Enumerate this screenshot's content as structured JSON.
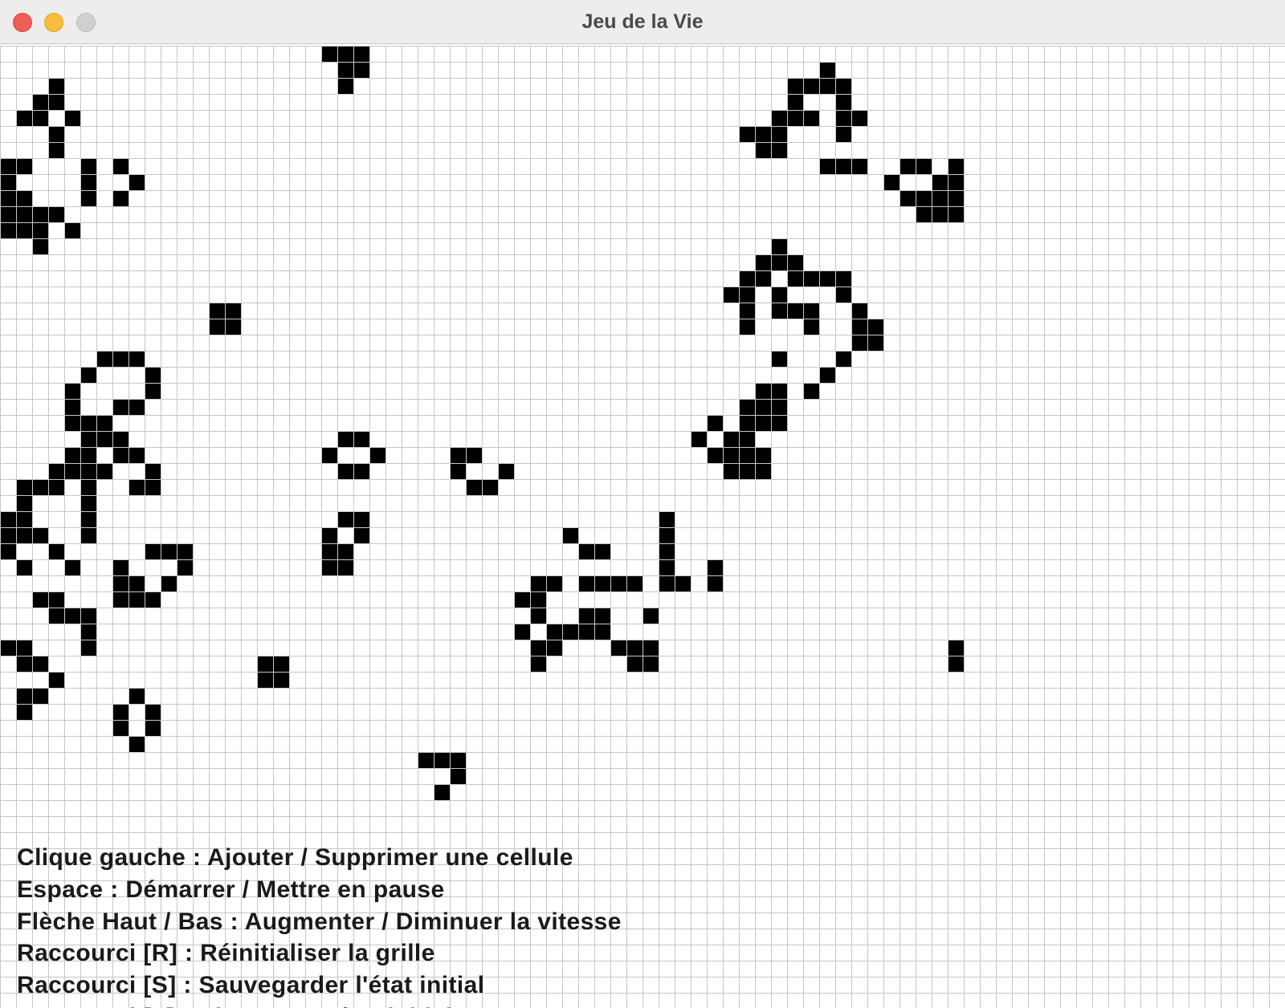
{
  "window": {
    "title": "Jeu de la Vie",
    "colors": {
      "titlebar": "#efedeb",
      "close": "#ee5f57",
      "minimize": "#f6bd3b",
      "zoom": "#d0d0cf"
    }
  },
  "board": {
    "grid_line_color": "#c6c6c6",
    "live_cell_color": "#000000",
    "live_cells": [
      [
        20,
        0
      ],
      [
        21,
        0
      ],
      [
        22,
        0
      ],
      [
        21,
        1
      ],
      [
        22,
        1
      ],
      [
        21,
        2
      ],
      [
        51,
        1
      ],
      [
        49,
        2
      ],
      [
        50,
        2
      ],
      [
        51,
        2
      ],
      [
        52,
        2
      ],
      [
        3,
        2
      ],
      [
        49,
        3
      ],
      [
        52,
        3
      ],
      [
        2,
        3
      ],
      [
        3,
        3
      ],
      [
        48,
        4
      ],
      [
        49,
        4
      ],
      [
        50,
        4
      ],
      [
        52,
        4
      ],
      [
        53,
        4
      ],
      [
        1,
        4
      ],
      [
        2,
        4
      ],
      [
        4,
        4
      ],
      [
        3,
        5
      ],
      [
        46,
        5
      ],
      [
        47,
        5
      ],
      [
        48,
        5
      ],
      [
        52,
        5
      ],
      [
        3,
        6
      ],
      [
        47,
        6
      ],
      [
        48,
        6
      ],
      [
        0,
        7
      ],
      [
        1,
        7
      ],
      [
        5,
        7
      ],
      [
        7,
        7
      ],
      [
        51,
        7
      ],
      [
        52,
        7
      ],
      [
        53,
        7
      ],
      [
        56,
        7
      ],
      [
        57,
        7
      ],
      [
        59,
        7
      ],
      [
        0,
        8
      ],
      [
        5,
        8
      ],
      [
        8,
        8
      ],
      [
        55,
        8
      ],
      [
        58,
        8
      ],
      [
        59,
        8
      ],
      [
        0,
        9
      ],
      [
        1,
        9
      ],
      [
        5,
        9
      ],
      [
        7,
        9
      ],
      [
        56,
        9
      ],
      [
        57,
        9
      ],
      [
        58,
        9
      ],
      [
        59,
        9
      ],
      [
        0,
        10
      ],
      [
        1,
        10
      ],
      [
        2,
        10
      ],
      [
        3,
        10
      ],
      [
        57,
        10
      ],
      [
        58,
        10
      ],
      [
        59,
        10
      ],
      [
        0,
        11
      ],
      [
        1,
        11
      ],
      [
        2,
        11
      ],
      [
        4,
        11
      ],
      [
        2,
        12
      ],
      [
        48,
        12
      ],
      [
        47,
        13
      ],
      [
        48,
        13
      ],
      [
        49,
        13
      ],
      [
        46,
        14
      ],
      [
        47,
        14
      ],
      [
        49,
        14
      ],
      [
        50,
        14
      ],
      [
        51,
        14
      ],
      [
        52,
        14
      ],
      [
        45,
        15
      ],
      [
        46,
        15
      ],
      [
        48,
        15
      ],
      [
        52,
        15
      ],
      [
        13,
        16
      ],
      [
        14,
        16
      ],
      [
        46,
        16
      ],
      [
        48,
        16
      ],
      [
        49,
        16
      ],
      [
        50,
        16
      ],
      [
        53,
        16
      ],
      [
        13,
        17
      ],
      [
        14,
        17
      ],
      [
        46,
        17
      ],
      [
        50,
        17
      ],
      [
        53,
        17
      ],
      [
        54,
        17
      ],
      [
        53,
        18
      ],
      [
        54,
        18
      ],
      [
        48,
        19
      ],
      [
        52,
        19
      ],
      [
        6,
        19
      ],
      [
        7,
        19
      ],
      [
        8,
        19
      ],
      [
        5,
        20
      ],
      [
        9,
        20
      ],
      [
        51,
        20
      ],
      [
        4,
        21
      ],
      [
        9,
        21
      ],
      [
        47,
        21
      ],
      [
        48,
        21
      ],
      [
        50,
        21
      ],
      [
        4,
        22
      ],
      [
        7,
        22
      ],
      [
        8,
        22
      ],
      [
        46,
        22
      ],
      [
        47,
        22
      ],
      [
        48,
        22
      ],
      [
        4,
        23
      ],
      [
        5,
        23
      ],
      [
        6,
        23
      ],
      [
        44,
        23
      ],
      [
        46,
        23
      ],
      [
        47,
        23
      ],
      [
        48,
        23
      ],
      [
        5,
        24
      ],
      [
        6,
        24
      ],
      [
        7,
        24
      ],
      [
        43,
        24
      ],
      [
        45,
        24
      ],
      [
        46,
        24
      ],
      [
        21,
        24
      ],
      [
        22,
        24
      ],
      [
        20,
        25
      ],
      [
        23,
        25
      ],
      [
        4,
        25
      ],
      [
        5,
        25
      ],
      [
        7,
        25
      ],
      [
        8,
        25
      ],
      [
        44,
        25
      ],
      [
        45,
        25
      ],
      [
        46,
        25
      ],
      [
        47,
        25
      ],
      [
        28,
        25
      ],
      [
        29,
        25
      ],
      [
        21,
        26
      ],
      [
        22,
        26
      ],
      [
        3,
        26
      ],
      [
        4,
        26
      ],
      [
        5,
        26
      ],
      [
        6,
        26
      ],
      [
        9,
        26
      ],
      [
        28,
        26
      ],
      [
        31,
        26
      ],
      [
        45,
        26
      ],
      [
        46,
        26
      ],
      [
        47,
        26
      ],
      [
        1,
        27
      ],
      [
        2,
        27
      ],
      [
        3,
        27
      ],
      [
        5,
        27
      ],
      [
        8,
        27
      ],
      [
        9,
        27
      ],
      [
        29,
        27
      ],
      [
        30,
        27
      ],
      [
        1,
        28
      ],
      [
        5,
        28
      ],
      [
        0,
        29
      ],
      [
        1,
        29
      ],
      [
        5,
        29
      ],
      [
        0,
        30
      ],
      [
        1,
        30
      ],
      [
        2,
        30
      ],
      [
        5,
        30
      ],
      [
        21,
        29
      ],
      [
        22,
        29
      ],
      [
        20,
        30
      ],
      [
        22,
        30
      ],
      [
        0,
        31
      ],
      [
        3,
        31
      ],
      [
        9,
        31
      ],
      [
        10,
        31
      ],
      [
        11,
        31
      ],
      [
        20,
        31
      ],
      [
        21,
        31
      ],
      [
        41,
        29
      ],
      [
        41,
        30
      ],
      [
        35,
        30
      ],
      [
        41,
        31
      ],
      [
        36,
        31
      ],
      [
        37,
        31
      ],
      [
        1,
        32
      ],
      [
        4,
        32
      ],
      [
        7,
        32
      ],
      [
        11,
        32
      ],
      [
        20,
        32
      ],
      [
        21,
        32
      ],
      [
        41,
        32
      ],
      [
        44,
        32
      ],
      [
        7,
        33
      ],
      [
        8,
        33
      ],
      [
        10,
        33
      ],
      [
        33,
        33
      ],
      [
        34,
        33
      ],
      [
        36,
        33
      ],
      [
        37,
        33
      ],
      [
        38,
        33
      ],
      [
        39,
        33
      ],
      [
        41,
        33
      ],
      [
        42,
        33
      ],
      [
        44,
        33
      ],
      [
        2,
        34
      ],
      [
        3,
        34
      ],
      [
        7,
        34
      ],
      [
        8,
        34
      ],
      [
        9,
        34
      ],
      [
        32,
        34
      ],
      [
        33,
        34
      ],
      [
        3,
        35
      ],
      [
        4,
        35
      ],
      [
        5,
        35
      ],
      [
        33,
        35
      ],
      [
        36,
        35
      ],
      [
        37,
        35
      ],
      [
        40,
        35
      ],
      [
        5,
        36
      ],
      [
        32,
        36
      ],
      [
        34,
        36
      ],
      [
        35,
        36
      ],
      [
        36,
        36
      ],
      [
        37,
        36
      ],
      [
        5,
        37
      ],
      [
        33,
        37
      ],
      [
        34,
        37
      ],
      [
        38,
        37
      ],
      [
        39,
        37
      ],
      [
        40,
        37
      ],
      [
        0,
        37
      ],
      [
        1,
        37
      ],
      [
        59,
        37
      ],
      [
        1,
        38
      ],
      [
        2,
        38
      ],
      [
        16,
        38
      ],
      [
        17,
        38
      ],
      [
        33,
        38
      ],
      [
        39,
        38
      ],
      [
        40,
        38
      ],
      [
        59,
        38
      ],
      [
        3,
        39
      ],
      [
        16,
        39
      ],
      [
        17,
        39
      ],
      [
        1,
        40
      ],
      [
        2,
        40
      ],
      [
        8,
        40
      ],
      [
        1,
        41
      ],
      [
        7,
        41
      ],
      [
        9,
        41
      ],
      [
        7,
        42
      ],
      [
        9,
        42
      ],
      [
        8,
        43
      ],
      [
        26,
        44
      ],
      [
        27,
        44
      ],
      [
        28,
        44
      ],
      [
        28,
        45
      ],
      [
        27,
        46
      ]
    ]
  },
  "help": {
    "lines": [
      "Clique gauche : Ajouter / Supprimer une cellule",
      "Espace : Démarrer / Mettre en pause",
      "Flèche Haut / Bas : Augmenter / Diminuer la vitesse",
      "Raccourci [R] : Réinitialiser la grille",
      "Raccourci [S] : Sauvegarder l'état initial",
      "Raccourci [L] : Charger un état initial"
    ]
  }
}
